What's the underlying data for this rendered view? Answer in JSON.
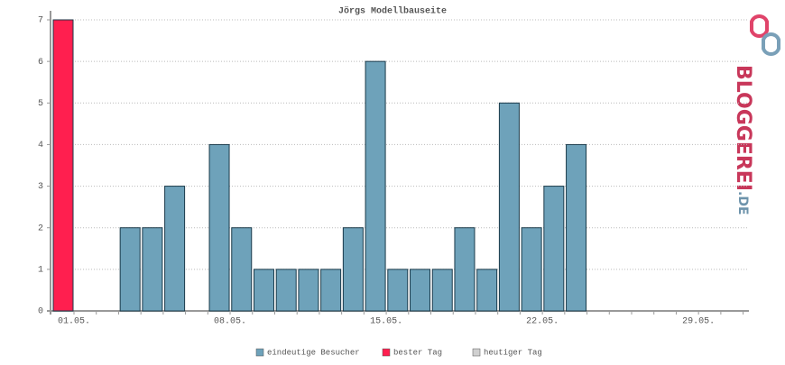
{
  "chart_data": {
    "type": "bar",
    "title": "Jörgs Modellbauseite",
    "categories": [
      "01.05.",
      null,
      null,
      null,
      null,
      null,
      null,
      "08.05.",
      null,
      null,
      null,
      null,
      null,
      null,
      "15.05.",
      null,
      null,
      null,
      null,
      null,
      null,
      "22.05.",
      null,
      null,
      null,
      null,
      null,
      null,
      "29.05.",
      null,
      null
    ],
    "series": [
      {
        "name": "eindeutige Besucher",
        "color": "#6ea2ba",
        "values": [
          null,
          0,
          0,
          2,
          2,
          3,
          0,
          4,
          2,
          1,
          1,
          1,
          1,
          2,
          6,
          1,
          1,
          1,
          2,
          1,
          5,
          2,
          3,
          4,
          0,
          0,
          0,
          0,
          0,
          0,
          0
        ]
      },
      {
        "name": "bester Tag",
        "color": "#ff1f4f",
        "values": [
          7,
          null,
          null,
          null,
          null,
          null,
          null,
          null,
          null,
          null,
          null,
          null,
          null,
          null,
          null,
          null,
          null,
          null,
          null,
          null,
          null,
          null,
          null,
          null,
          null,
          null,
          null,
          null,
          null,
          null,
          null
        ]
      },
      {
        "name": "heutiger Tag",
        "color": "#d0d0d0",
        "values": [
          null,
          null,
          null,
          null,
          null,
          null,
          null,
          null,
          null,
          null,
          null,
          null,
          null,
          null,
          null,
          null,
          null,
          null,
          null,
          null,
          null,
          null,
          null,
          null,
          null,
          null,
          null,
          null,
          null,
          null,
          null
        ]
      }
    ],
    "ylim": [
      0,
      7
    ],
    "yticks": [
      0,
      1,
      2,
      3,
      4,
      5,
      6,
      7
    ],
    "grid": true
  },
  "logo": {
    "name": "BLOGGEREI",
    "suffix": ".DE"
  }
}
